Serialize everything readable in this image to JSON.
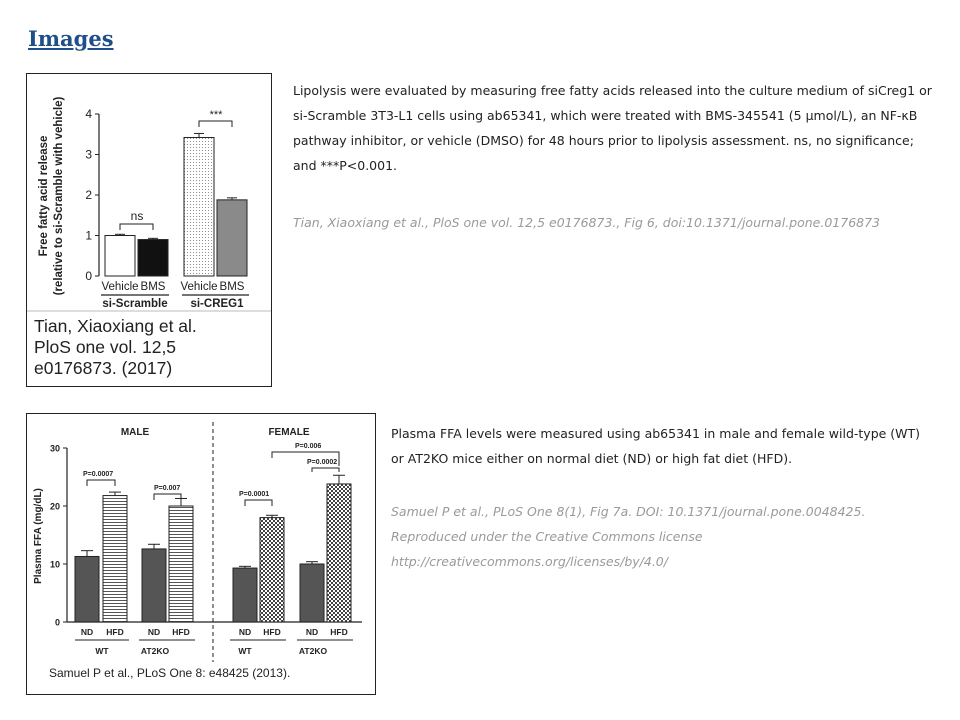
{
  "page": {
    "title": "Images"
  },
  "figures": [
    {
      "description": "Lipolysis were evaluated by measuring free fatty acids released into the culture medium of siCreg1 or si-Scramble 3T3-L1 cells using ab65341, which were treated with BMS-345541 (5 µmol/L), an NF-κB pathway inhibitor, or vehicle (DMSO) for 48 hours prior to lipolysis assessment. ns, no significance; and ***P<0.001.",
      "citation": "Tian, Xiaoxiang et al., PloS one vol. 12,5 e0176873., Fig 6, doi:10.1371/journal.pone.0176873",
      "caption_lines": [
        "Tian, Xiaoxiang et al.",
        "PloS one vol. 12,5",
        "e0176873. (2017)"
      ],
      "chart_data": {
        "type": "bar",
        "ylabel_lines": [
          "Free fatty acid release",
          "(relative to si-Scramble with vehicle)"
        ],
        "ylim": [
          0,
          4
        ],
        "yticks": [
          "0",
          "1",
          "2",
          "3",
          "4"
        ],
        "bars": [
          {
            "label": "Vehicle",
            "group": "si-Scramble",
            "value": 1.0,
            "error": 0.03,
            "fill": "white"
          },
          {
            "label": "BMS",
            "group": "si-Scramble",
            "value": 0.9,
            "error": 0.03,
            "fill": "black"
          },
          {
            "label": "Vehicle",
            "group": "si-CREG1",
            "value": 3.42,
            "error": 0.1,
            "fill": "dotted"
          },
          {
            "label": "BMS",
            "group": "si-CREG1",
            "value": 1.88,
            "error": 0.05,
            "fill": "gray"
          }
        ],
        "groups": [
          "si-Scramble",
          "si-CREG1"
        ],
        "annotations": [
          "ns",
          "***"
        ]
      }
    },
    {
      "description": "Plasma FFA levels were measured using ab65341 in male and female wild-type (WT) or AT2KO mice either on normal diet (ND) or high fat diet (HFD).",
      "citation_lines": [
        "Samuel P et al., PLoS One 8(1), Fig 7a. DOI: 10.1371/journal.pone.0048425.",
        "Reproduced under the Creative Commons license",
        "http://creativecommons.org/licenses/by/4.0/"
      ],
      "caption": "Samuel P et al., PLoS One 8: e48425 (2013).",
      "chart_data": {
        "type": "bar",
        "panels": [
          "MALE",
          "FEMALE"
        ],
        "ylabel": "Plasma FFA (mg/dL)",
        "ylim": [
          0,
          30
        ],
        "yticks": [
          "0",
          "10",
          "20",
          "30"
        ],
        "bars": [
          {
            "panel": "MALE",
            "genotype": "WT",
            "label": "ND",
            "value": 11.3,
            "error": 1.0,
            "fill": "gray"
          },
          {
            "panel": "MALE",
            "genotype": "WT",
            "label": "HFD",
            "value": 21.8,
            "error": 0.6,
            "fill": "hatched"
          },
          {
            "panel": "MALE",
            "genotype": "AT2KO",
            "label": "ND",
            "value": 12.6,
            "error": 0.8,
            "fill": "gray"
          },
          {
            "panel": "MALE",
            "genotype": "AT2KO",
            "label": "HFD",
            "value": 20.0,
            "error": 1.3,
            "fill": "hatched"
          },
          {
            "panel": "FEMALE",
            "genotype": "WT",
            "label": "ND",
            "value": 9.3,
            "error": 0.3,
            "fill": "gray"
          },
          {
            "panel": "FEMALE",
            "genotype": "WT",
            "label": "HFD",
            "value": 18.0,
            "error": 0.4,
            "fill": "checker"
          },
          {
            "panel": "FEMALE",
            "genotype": "AT2KO",
            "label": "ND",
            "value": 10.0,
            "error": 0.4,
            "fill": "gray"
          },
          {
            "panel": "FEMALE",
            "genotype": "AT2KO",
            "label": "HFD",
            "value": 23.8,
            "error": 1.5,
            "fill": "checker"
          }
        ],
        "genotype_labels": [
          "WT",
          "AT2KO",
          "WT",
          "AT2KO"
        ],
        "pvalues": [
          "P=0.0007",
          "P=0.007",
          "P=0.0001",
          "P=0.006",
          "P=0.0002"
        ]
      }
    }
  ],
  "colors": {
    "title": "#1f4e8a",
    "citation": "#9a9a9a"
  }
}
